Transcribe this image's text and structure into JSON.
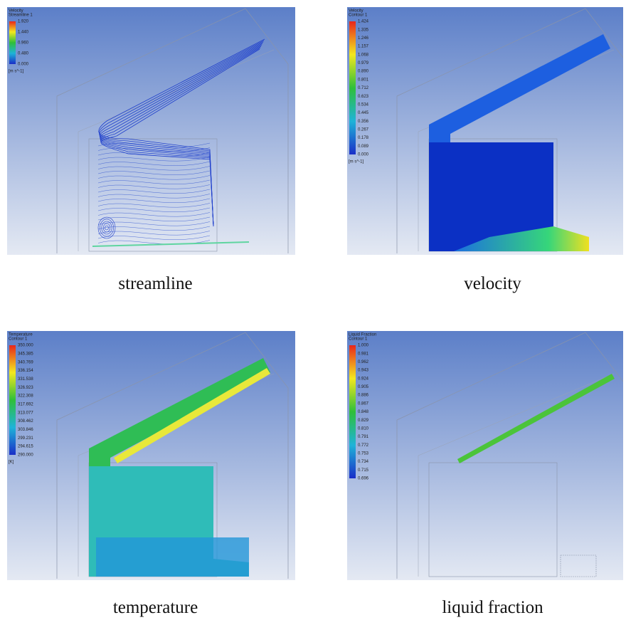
{
  "panels": [
    {
      "caption": "streamline",
      "legend": {
        "title": "Velocity",
        "subtitle": "Streamline 1",
        "ticks": [
          "1.920",
          "1.440",
          "0.960",
          "0.480",
          "0.000"
        ],
        "unit": "[m s^-1]"
      }
    },
    {
      "caption": "velocity",
      "legend": {
        "title": "Velocity",
        "subtitle": "Contour 1",
        "ticks": [
          "1.424",
          "1.335",
          "1.246",
          "1.157",
          "1.068",
          "0.979",
          "0.890",
          "0.801",
          "0.712",
          "0.623",
          "0.534",
          "0.445",
          "0.356",
          "0.267",
          "0.178",
          "0.089",
          "0.000"
        ],
        "unit": "[m s^-1]"
      }
    },
    {
      "caption": "temperature",
      "legend": {
        "title": "Temperature",
        "subtitle": "Contour 1",
        "ticks": [
          "350.000",
          "345.385",
          "340.769",
          "336.154",
          "331.538",
          "326.923",
          "322.308",
          "317.692",
          "313.077",
          "308.462",
          "303.846",
          "299.231",
          "294.615",
          "290.000"
        ],
        "unit": "[K]"
      }
    },
    {
      "caption": "liquid fraction",
      "legend": {
        "title": "Liquid Fraction",
        "subtitle": "Contour 1",
        "ticks": [
          "1.000",
          "0.981",
          "0.962",
          "0.943",
          "0.924",
          "0.905",
          "0.886",
          "0.867",
          "0.848",
          "0.829",
          "0.810",
          "0.791",
          "0.772",
          "0.753",
          "0.734",
          "0.715",
          "0.696"
        ],
        "unit": null
      }
    }
  ]
}
